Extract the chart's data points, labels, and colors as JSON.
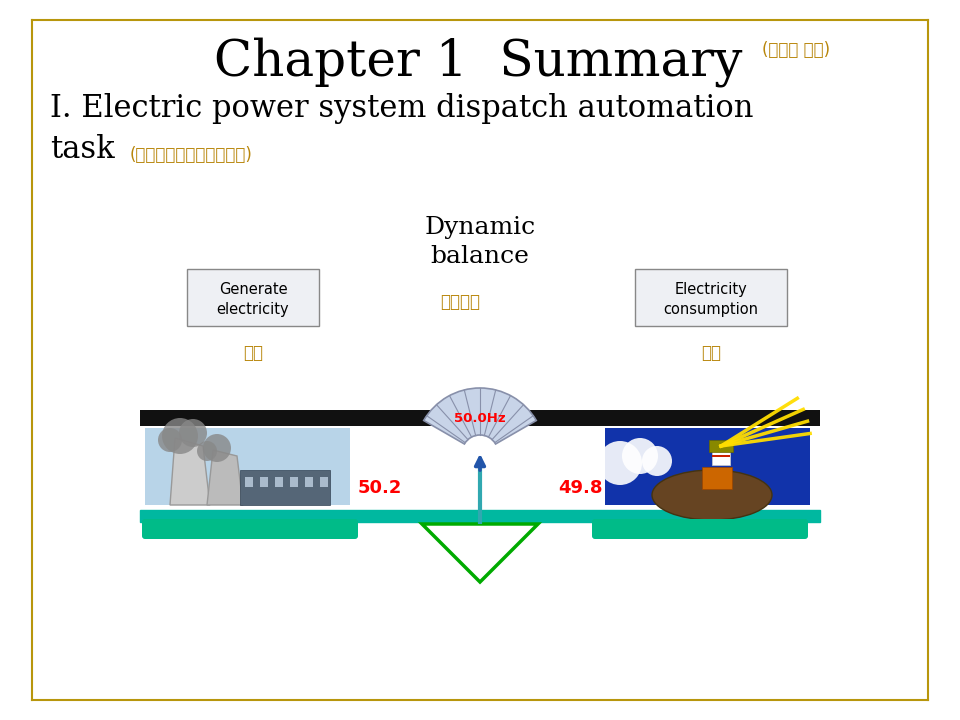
{
  "bg_color": "#FFFFFF",
  "border_color": "#B8960C",
  "title_main": "Chapter 1  Summary",
  "title_sub": "(第一章 概述)",
  "subtitle_en1": "I. Electric power system dispatch automation",
  "subtitle_en2": "task",
  "subtitle_cn": "(电力系统调度自动化任务)",
  "title_color": "#000000",
  "subtitle_color": "#000000",
  "cn_color": "#B8860B",
  "dynamic_balance_en": "Dynamic\nbalance",
  "dynamic_balance_cn": "动态平衡",
  "generate_en": "Generate\nelectricity",
  "generate_cn": "发电",
  "consume_en": "Electricity\nconsumption",
  "consume_cn": "用电",
  "freq_label": "50.0Hz",
  "left_freq": "50.2",
  "right_freq": "49.8",
  "freq_color": "#FF0000",
  "beam_color": "#00B8A0",
  "triangle_color": "#00AA00",
  "black_bar_color": "#111111",
  "tray_color": "#00BB88",
  "gauge_fill": "#C8D4E8",
  "gauge_line": "#8890AA",
  "needle_top_color": "#2255BB",
  "needle_bot_color": "#00AAAA",
  "box_bg": "#EEF0F4",
  "box_border": "#888888"
}
